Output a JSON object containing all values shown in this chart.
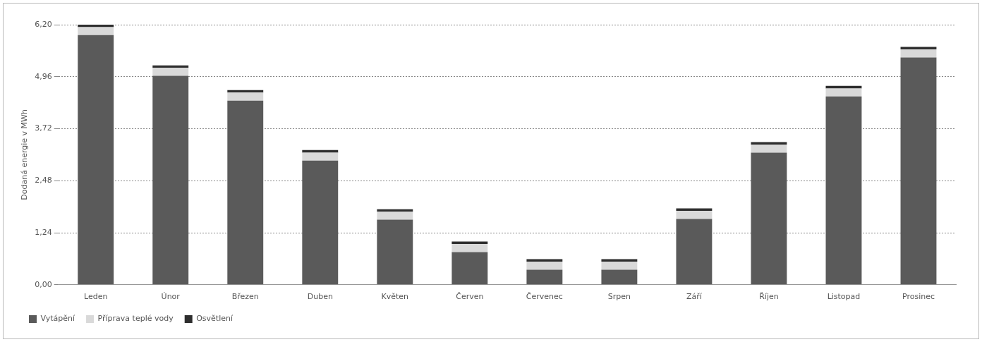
{
  "chart_data": {
    "type": "bar",
    "stacked": true,
    "ylabel": "Dodaná energie v MWh",
    "categories": [
      "Leden",
      "Únor",
      "Březen",
      "Duben",
      "Květen",
      "Červen",
      "Červenec",
      "Srpen",
      "Září",
      "Říjen",
      "Listopad",
      "Prosinec"
    ],
    "series": [
      {
        "name": "Vytápění",
        "color": "#5a5a5a",
        "values": [
          5.95,
          4.98,
          4.39,
          2.96,
          1.55,
          0.78,
          0.36,
          0.36,
          1.57,
          3.15,
          4.49,
          5.42
        ]
      },
      {
        "name": "Příprava teplé vody",
        "color": "#d9d9d9",
        "values": [
          0.19,
          0.19,
          0.19,
          0.19,
          0.19,
          0.19,
          0.19,
          0.19,
          0.19,
          0.19,
          0.19,
          0.19
        ]
      },
      {
        "name": "Osvětlení",
        "color": "#2e2e2e",
        "values": [
          0.06,
          0.06,
          0.06,
          0.06,
          0.06,
          0.06,
          0.06,
          0.06,
          0.06,
          0.06,
          0.06,
          0.06
        ]
      }
    ],
    "ylim": [
      0,
      6.2
    ],
    "yticks": [
      {
        "value": 0,
        "label": "0,00"
      },
      {
        "value": 1.24,
        "label": "1,24"
      },
      {
        "value": 2.48,
        "label": "2,48"
      },
      {
        "value": 3.72,
        "label": "3,72"
      },
      {
        "value": 4.96,
        "label": "4,96"
      },
      {
        "value": 6.2,
        "label": "6,20"
      }
    ],
    "grid": "y",
    "legend": "bottom"
  }
}
